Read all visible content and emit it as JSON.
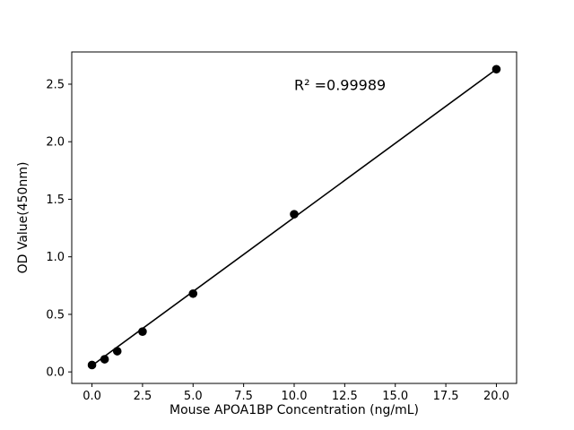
{
  "chart_data": {
    "type": "scatter",
    "title": "",
    "xlabel": "Mouse APOA1BP Concentration (ng/mL)",
    "ylabel": "OD Value(450nm)",
    "xlim": [
      -1,
      21
    ],
    "ylim": [
      -0.1,
      2.78
    ],
    "grid": false,
    "legend": null,
    "xticks": {
      "values": [
        0,
        2.5,
        5,
        7.5,
        10,
        12.5,
        15,
        17.5,
        20
      ],
      "labels": [
        "0.0",
        "2.5",
        "5.0",
        "7.5",
        "10.0",
        "12.5",
        "15.0",
        "17.5",
        "20.0"
      ]
    },
    "yticks": {
      "values": [
        0,
        0.5,
        1,
        1.5,
        2,
        2.5
      ],
      "labels": [
        "0.0",
        "0.5",
        "1.0",
        "1.5",
        "2.0",
        "2.5"
      ]
    },
    "series": [
      {
        "name": "standard-curve-points",
        "x": [
          0,
          0.625,
          1.25,
          2.5,
          5,
          10,
          20
        ],
        "y": [
          0.06,
          0.11,
          0.18,
          0.35,
          0.68,
          1.37,
          2.63
        ]
      }
    ],
    "fit_line": {
      "x": [
        0,
        20
      ],
      "y": [
        0.055,
        2.63
      ]
    },
    "annotation": {
      "text": "R² =0.99989",
      "x": 10,
      "y": 2.45
    },
    "colors": {
      "marker": "#000000",
      "line": "#000000",
      "text": "#000000",
      "background": "#ffffff"
    }
  }
}
